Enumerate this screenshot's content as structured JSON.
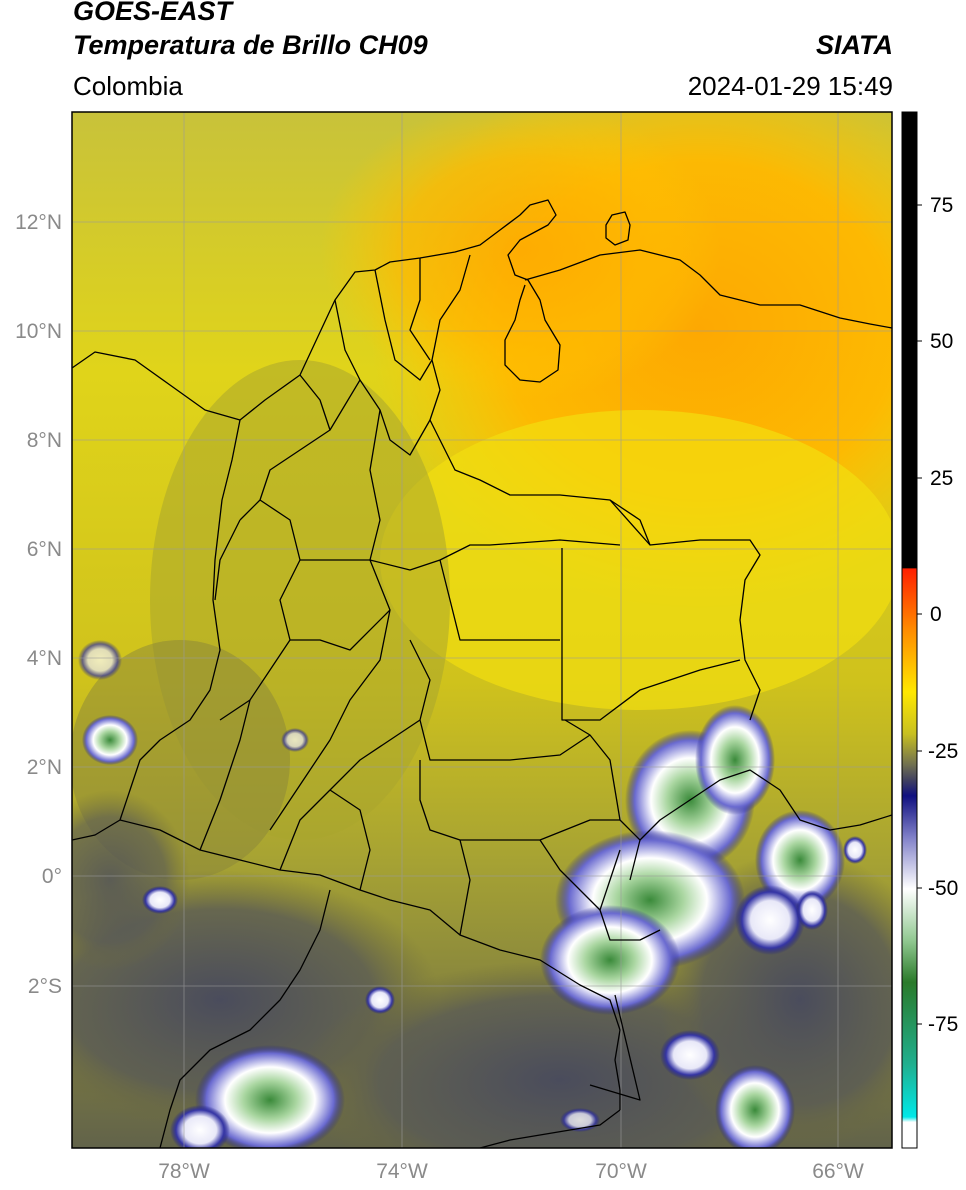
{
  "header": {
    "title_line1": "GOES-EAST",
    "title_line2": "Temperatura de Brillo CH09",
    "agency": "SIATA",
    "region": "Colombia",
    "timestamp": "2024-01-29 15:49"
  },
  "map": {
    "lat_labels": [
      "12°N",
      "10°N",
      "8°N",
      "6°N",
      "4°N",
      "2°N",
      "0°",
      "2°S"
    ],
    "lon_labels": [
      "78°W",
      "74°W",
      "70°W",
      "66°W"
    ],
    "colors": {
      "warm_orange": "#ffa600",
      "yellow": "#f5e50a",
      "olive": "#b4b02a",
      "dark_olive": "#6f6c3a",
      "slate": "#4a4c5c",
      "navy": "#1a1a80",
      "white": "#ffffff",
      "green": "#3a8a3a",
      "border": "#000000",
      "grid": "#9a9a9a"
    }
  },
  "colorbar": {
    "tick_labels": [
      "75",
      "50",
      "25",
      "0",
      "-25",
      "-50",
      "-75"
    ]
  }
}
